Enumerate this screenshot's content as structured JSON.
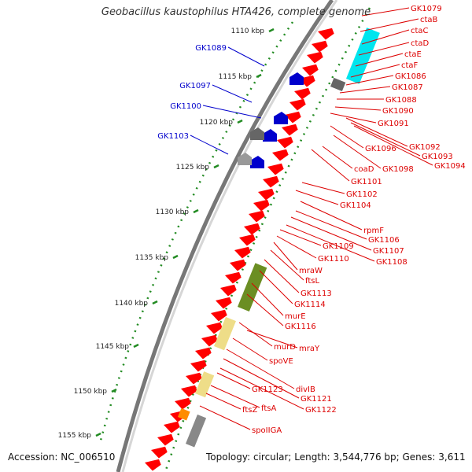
{
  "title": "Geobacillus kaustophilus HTA426, complete genome",
  "footer": {
    "accession": "Accession: NC_006510",
    "topology": "Topology: circular; Length: 3,544,776 bp; Genes: 3,611"
  },
  "colors": {
    "forward_gene": "#ff0000",
    "reverse_gene": "#0000cc",
    "label_red": "#dd0000",
    "label_blue": "#0000cc",
    "kbp_tick": "#228b22",
    "backbone": "#888888",
    "cyan_block": "#00e5ee",
    "olive_block": "#6b8e23",
    "khaki_block": "#eedd88",
    "orange_block": "#ff8c00"
  },
  "kbp_ticks": [
    "1110 kbp",
    "1115 kbp",
    "1120 kbp",
    "1125 kbp",
    "1130 kbp",
    "1135 kbp",
    "1140 kbp",
    "1145 kbp",
    "1150 kbp",
    "1155 kbp"
  ],
  "blue_labels": [
    "GK1089",
    "GK1097",
    "GK1100",
    "GK1103"
  ],
  "red_labels": [
    "GK1079",
    "ctaB",
    "ctaC",
    "ctaD",
    "ctaE",
    "ctaF",
    "GK1086",
    "GK1087",
    "GK1088",
    "GK1090",
    "GK1091",
    "GK1092",
    "GK1093",
    "GK1094",
    "GK1096",
    "GK1098",
    "coaD",
    "GK1101",
    "GK1102",
    "GK1104",
    "rpmF",
    "GK1106",
    "GK1107",
    "GK1108",
    "GK1109",
    "GK1110",
    "mraW",
    "ftsL",
    "GK1113",
    "GK1114",
    "murE",
    "GK1116",
    "murD",
    "mraY",
    "spoVE",
    "divIB",
    "GK1121",
    "GK1122",
    "GK1123",
    "ftsA",
    "ftsZ",
    "spoIIGA"
  ]
}
